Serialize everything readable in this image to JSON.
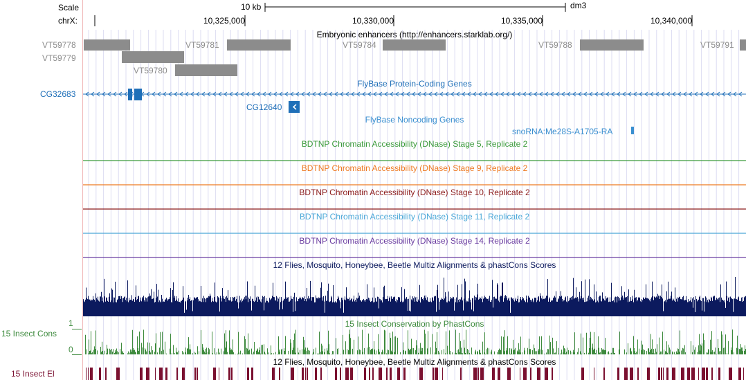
{
  "ruler": {
    "scale_label": "Scale",
    "chrom_label": "chrX:",
    "scale_bar_label": "10 kb",
    "assembly": "dm3",
    "ticks": [
      "10,325,000",
      "10,330,000",
      "10,335,000",
      "10,340,000"
    ]
  },
  "tracks": {
    "enhancers": {
      "title": "Embryonic enhancers (http://enhancers.starklab.org/)",
      "items": [
        "VT59778",
        "VT59779",
        "VT59780",
        "VT59781",
        "VT59784",
        "VT59788",
        "VT59791"
      ],
      "color": "#8c8c8c"
    },
    "flybase_coding": {
      "title": "FlyBase Protein-Coding Genes",
      "genes": [
        "CG32683",
        "CG12640"
      ],
      "color": "#1f6fb8"
    },
    "flybase_noncoding": {
      "title": "FlyBase Noncoding Genes",
      "genes": [
        "snoRNA:Me28S-A1705-RA"
      ],
      "color": "#3a8fd0"
    },
    "dnase": [
      {
        "title": "BDTNP Chromatin Accessibility (DNase) Stage 5, Replicate 2",
        "color": "#3a9a3a"
      },
      {
        "title": "BDTNP Chromatin Accessibility (DNase) Stage 9, Replicate 2",
        "color": "#ee7a22"
      },
      {
        "title": "BDTNP Chromatin Accessibility (DNase) Stage 10, Replicate 2",
        "color": "#8b1a1a"
      },
      {
        "title": "BDTNP Chromatin Accessibility (DNase) Stage 11, Replicate 2",
        "color": "#4aa8d8"
      },
      {
        "title": "BDTNP Chromatin Accessibility (DNase) Stage 14, Replicate 2",
        "color": "#6a3ca0"
      }
    ],
    "multiz": {
      "title": "12 Flies, Mosquito, Honeybee, Beetle Multiz Alignments & phastCons Scores",
      "color": "#0c1a5e"
    },
    "insect_cons": {
      "title": "15 Insect Conservation by PhastCons",
      "side_label": "15 Insect Cons",
      "ymax_label": "1",
      "ymin_label": "0",
      "color": "#3d8a3d"
    },
    "insect_el": {
      "title": "12 Flies, Mosquito, Honeybee, Beetle Multiz Alignments & phastCons Scores",
      "side_label": "15 Insect El",
      "color": "#7a1030"
    }
  }
}
